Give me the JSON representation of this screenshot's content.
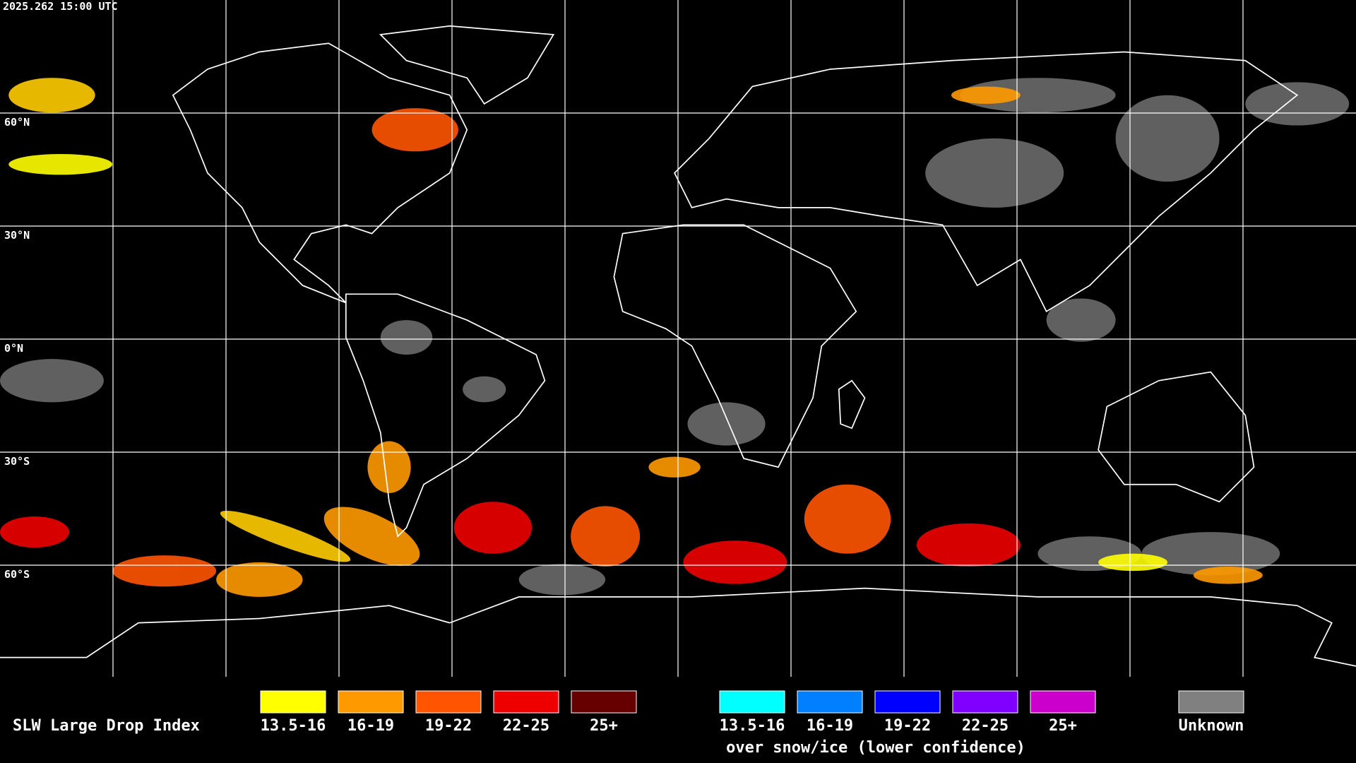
{
  "header": {
    "timestamp": "2025.262 15:00 UTC"
  },
  "map": {
    "latitude_labels": [
      "60°N",
      "30°N",
      "0°N",
      "30°S",
      "60°S"
    ]
  },
  "legend": {
    "title": "SLW Large Drop Index",
    "items": [
      {
        "label": "13.5-16",
        "color": "#ffff00"
      },
      {
        "label": "16-19",
        "color": "#ff9900"
      },
      {
        "label": "19-22",
        "color": "#ff5500"
      },
      {
        "label": "22-25",
        "color": "#ee0000"
      },
      {
        "label": "25+",
        "color": "#660000"
      }
    ],
    "snow_ice_items": [
      {
        "label": "13.5-16",
        "color": "#00ffff"
      },
      {
        "label": "16-19",
        "color": "#0080ff"
      },
      {
        "label": "19-22",
        "color": "#0000ff"
      },
      {
        "label": "22-25",
        "color": "#7f00ff"
      },
      {
        "label": "25+",
        "color": "#cc00cc"
      }
    ],
    "snow_ice_caption": "over snow/ice (lower confidence)",
    "unknown": {
      "label": "Unknown",
      "color": "#808080"
    }
  }
}
